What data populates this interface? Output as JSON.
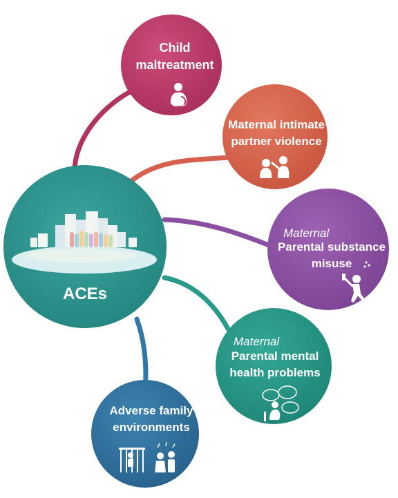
{
  "center": {
    "label": "ACEs",
    "color": "#2f9a93"
  },
  "nodes": [
    {
      "id": "child-maltreatment",
      "lines": [
        "Child",
        "maltreatment"
      ],
      "prefix": "",
      "color": "#bf3f6e",
      "link_color": "#b0345f",
      "icon": "child-hugging-knees-icon"
    },
    {
      "id": "partner-violence",
      "lines": [
        "Maternal intimate",
        "partner violence"
      ],
      "prefix": "",
      "color": "#dd6a55",
      "link_color": "#d6604d",
      "icon": "domestic-violence-icon"
    },
    {
      "id": "substance-misuse",
      "lines": [
        "Parental substance",
        "misuse"
      ],
      "prefix": "Maternal",
      "color": "#9155a8",
      "link_color": "#8a4fa0",
      "icon": "drinking-person-icon"
    },
    {
      "id": "mental-health",
      "lines": [
        "Parental mental",
        "health problems"
      ],
      "prefix": "Maternal",
      "color": "#2a9a8a",
      "link_color": "#2a9a8a",
      "icon": "distressed-person-icon"
    },
    {
      "id": "family-environments",
      "lines": [
        "Adverse family",
        "environments"
      ],
      "prefix": "",
      "color": "#3377a5",
      "link_color": "#3377a5",
      "icon": "family-conflict-icon"
    }
  ]
}
